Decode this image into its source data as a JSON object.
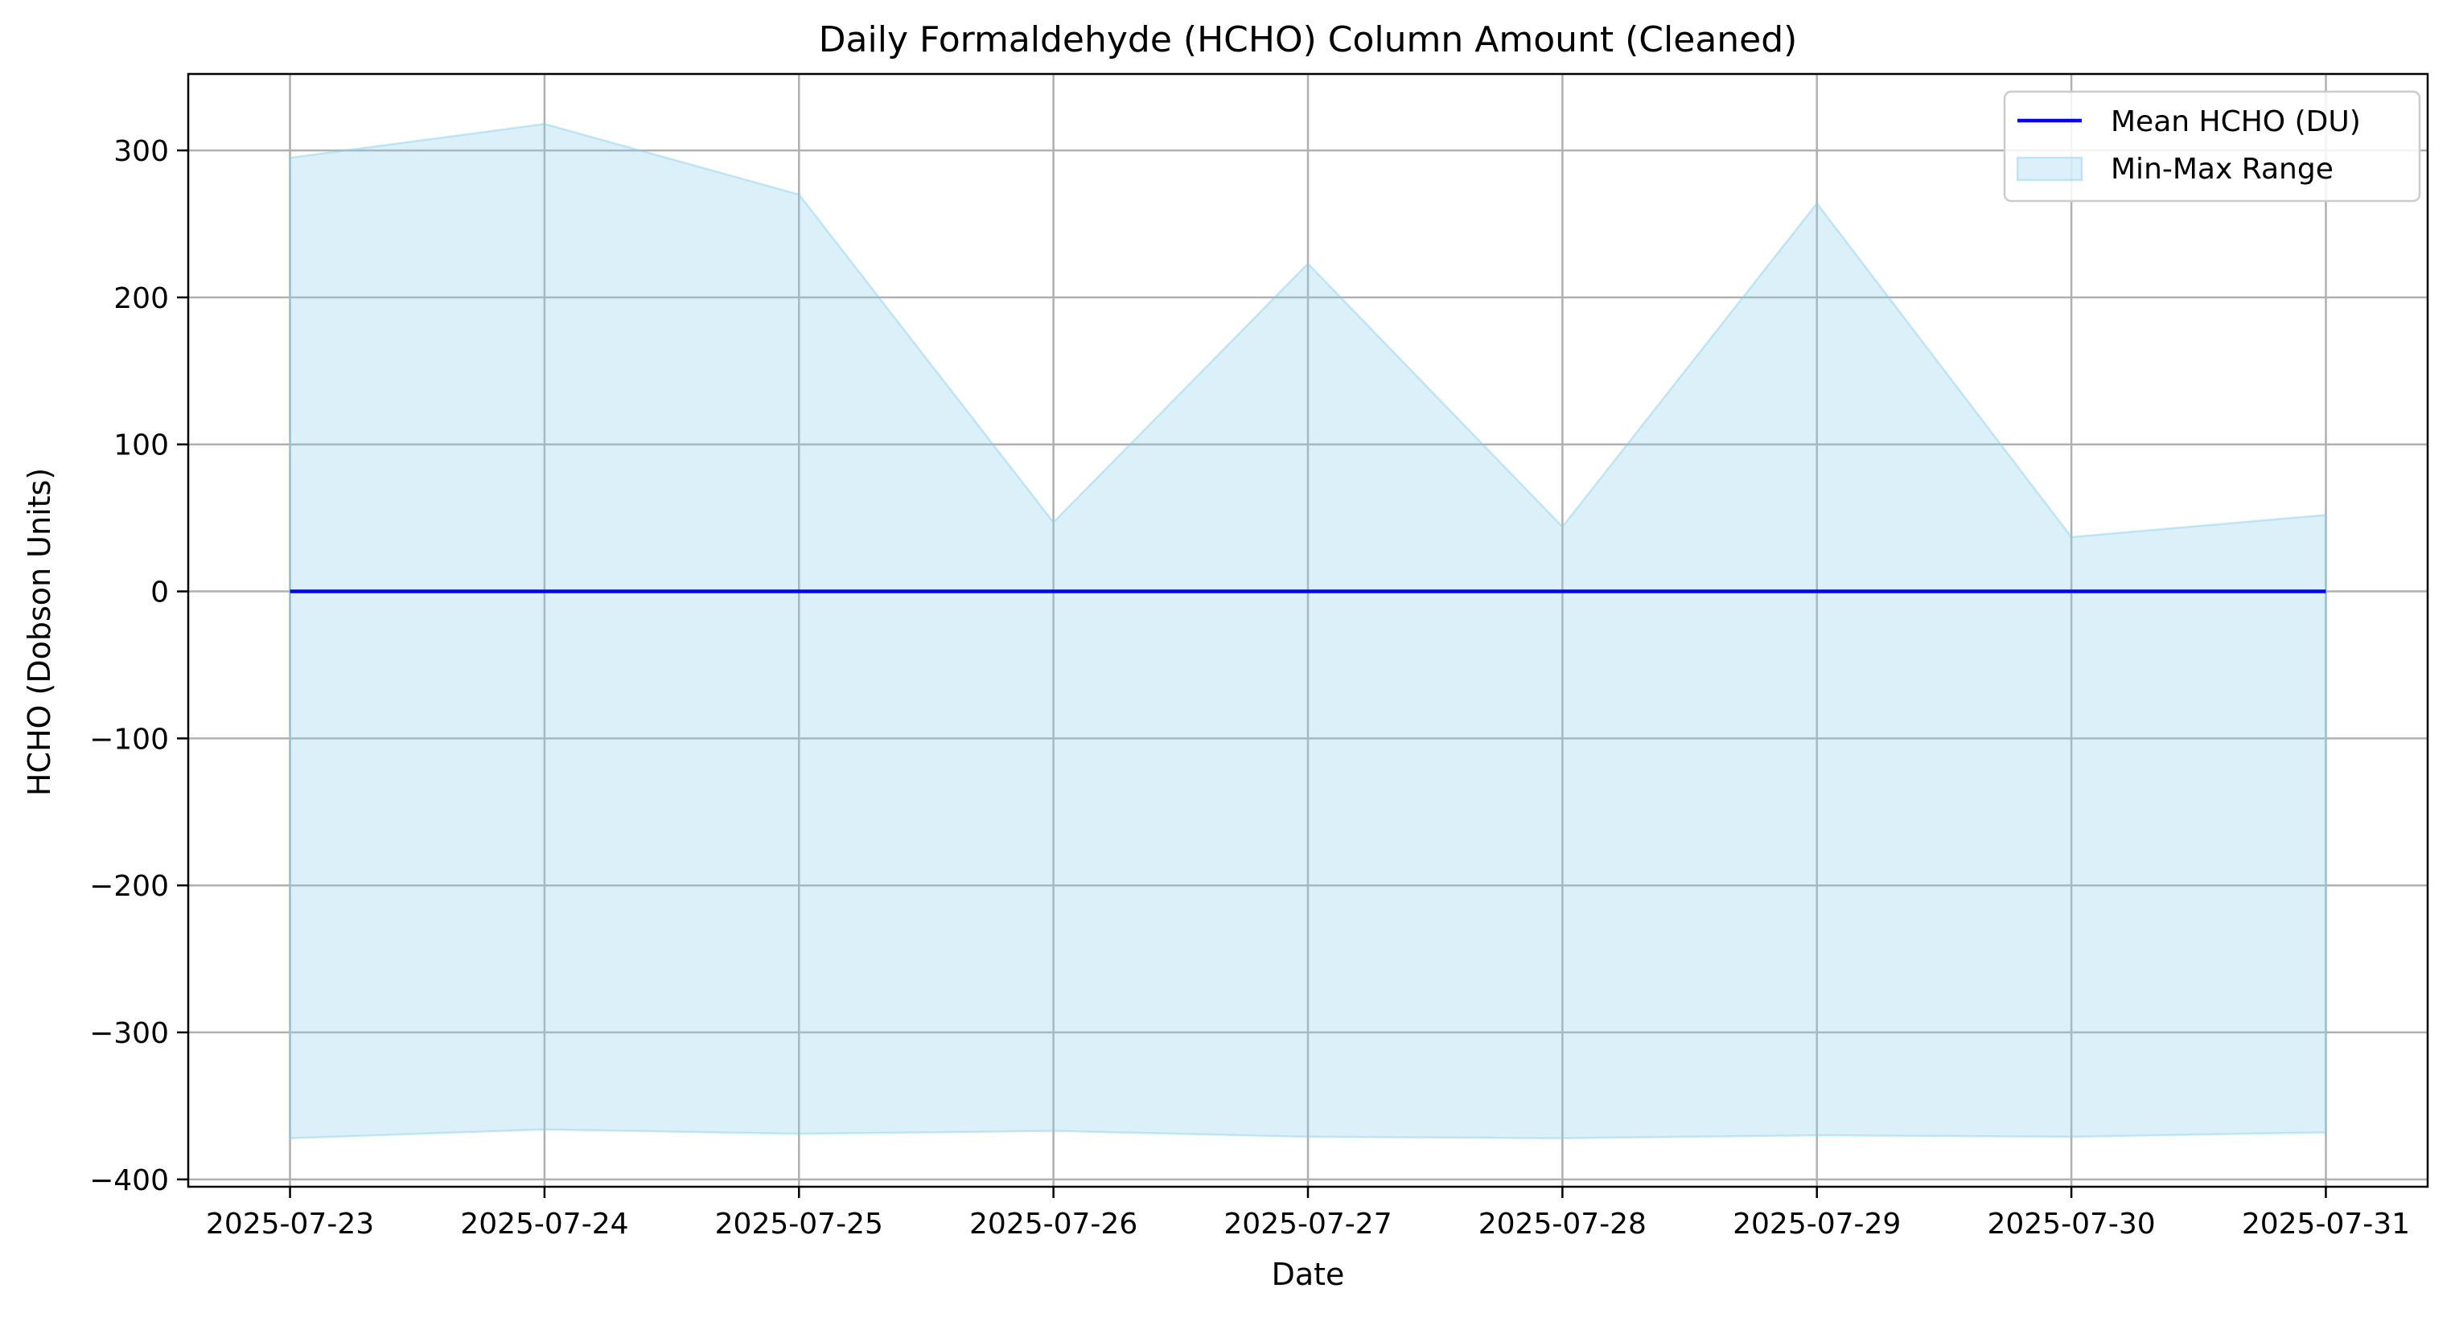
{
  "chart_data": {
    "type": "line",
    "title": "Daily Formaldehyde (HCHO) Column Amount (Cleaned)",
    "xlabel": "Date",
    "ylabel": "HCHO (Dobson Units)",
    "x": [
      "2025-07-23",
      "2025-07-24",
      "2025-07-25",
      "2025-07-26",
      "2025-07-27",
      "2025-07-28",
      "2025-07-29",
      "2025-07-30",
      "2025-07-31"
    ],
    "ylim": [
      -405,
      352
    ],
    "yticks": [
      -400,
      -300,
      -200,
      -100,
      0,
      100,
      200,
      300
    ],
    "ytick_labels": [
      "−400",
      "−300",
      "−200",
      "−100",
      "0",
      "100",
      "200",
      "300"
    ],
    "grid": true,
    "legend_position": "upper-right",
    "series": [
      {
        "name": "Mean HCHO (DU)",
        "kind": "line",
        "color": "#0000ff",
        "values": [
          0,
          0,
          0,
          0,
          0,
          0,
          0,
          0,
          0
        ]
      },
      {
        "name": "Min-Max Range",
        "kind": "band",
        "color": "#87ceeb",
        "max": [
          295,
          318,
          270,
          47,
          223,
          44,
          264,
          37,
          52
        ],
        "min": [
          -372,
          -366,
          -369,
          -367,
          -371,
          -372,
          -370,
          -371,
          -368
        ]
      }
    ]
  }
}
